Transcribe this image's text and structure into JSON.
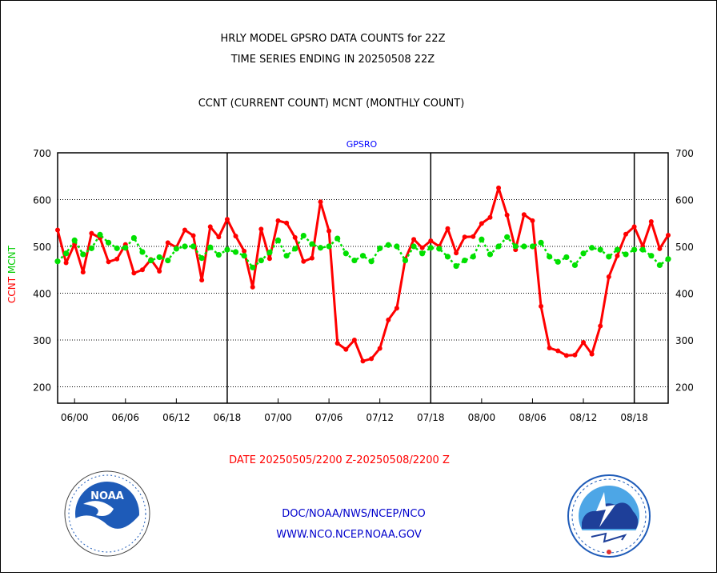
{
  "chart_data": {
    "type": "line",
    "title_lines": [
      "HRLY MODEL GPSRO DATA COUNTS for 22Z",
      "TIME SERIES ENDING IN 20250508 22Z"
    ],
    "subtitle": "CCNT (CURRENT COUNT) MCNT (MONTHLY COUNT)",
    "panel_label": "GPSRO",
    "ylabel_left": {
      "ccnt": "CCNT",
      "mcnt": "MCNT"
    },
    "y_ticks": [
      200,
      300,
      400,
      500,
      600,
      700
    ],
    "ylim": [
      165,
      700
    ],
    "x_ticks": [
      "06/00",
      "06/06",
      "06/12",
      "06/18",
      "07/00",
      "07/06",
      "07/12",
      "07/18",
      "08/00",
      "08/06",
      "08/12",
      "08/18"
    ],
    "x_tick_hours": [
      2,
      8,
      14,
      20,
      26,
      32,
      38,
      44,
      50,
      56,
      62,
      68
    ],
    "x_hour_range": [
      0,
      72
    ],
    "day_boundary_hours": [
      20,
      44,
      68
    ],
    "xlabel": "DATE 20250505/2200 Z-20250508/2200 Z",
    "grid": "dotted horizontal",
    "series": [
      {
        "name": "CCNT",
        "color": "#ff0000",
        "values": [
          535,
          465,
          505,
          445,
          528,
          518,
          467,
          473,
          504,
          443,
          450,
          472,
          447,
          508,
          498,
          535,
          523,
          428,
          542,
          520,
          558,
          522,
          490,
          413,
          537,
          474,
          555,
          550,
          519,
          468,
          475,
          595,
          533,
          293,
          280,
          300,
          255,
          260,
          282,
          343,
          368,
          473,
          515,
          497,
          512,
          500,
          538,
          486,
          520,
          521,
          549,
          562,
          625,
          567,
          493,
          568,
          555,
          372,
          283,
          277,
          267,
          268,
          295,
          270,
          330,
          435,
          480,
          526,
          542,
          500,
          553,
          495,
          524
        ]
      },
      {
        "name": "MCNT",
        "color": "#00e000",
        "values": [
          468,
          485,
          513,
          483,
          496,
          525,
          508,
          496,
          497,
          518,
          488,
          470,
          477,
          470,
          495,
          500,
          500,
          475,
          498,
          482,
          493,
          488,
          480,
          455,
          470,
          487,
          513,
          480,
          495,
          523,
          505,
          497,
          500,
          517,
          485,
          470,
          480,
          468,
          496,
          503,
          500,
          470,
          500,
          485,
          497,
          495,
          478,
          458,
          470,
          478,
          515,
          483,
          500,
          520,
          500,
          500,
          500,
          508,
          478,
          467,
          477,
          460,
          485,
          497,
          493,
          478,
          493,
          483,
          493,
          493,
          480,
          460,
          473
        ]
      }
    ]
  },
  "footer": {
    "line1": "DOC/NOAA/NWS/NCEP/NCO",
    "line2": "WWW.NCO.NCEP.NOAA.GOV"
  },
  "logos": {
    "noaa_text": "NOAA",
    "noaa_ring_text": "NATIONAL OCEANIC AND ATMOSPHERIC ADMINISTRATION · U.S. DEPARTMENT OF COMMERCE",
    "nws_ring_text": "NATIONAL WEATHER SERVICE"
  }
}
